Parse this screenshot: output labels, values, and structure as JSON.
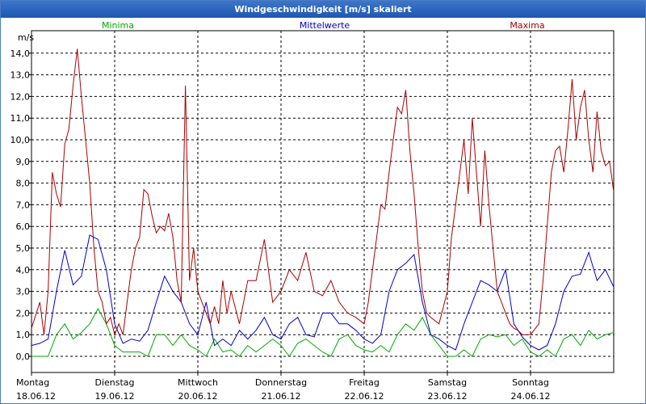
{
  "window": {
    "title": "Windgeschwindigkeit [m/s] skaliert"
  },
  "chart_data": {
    "type": "line",
    "title": "Windgeschwindigkeit [m/s] skaliert",
    "ylabel": "m/s",
    "xlabel": "",
    "ylim": [
      -0.5,
      15.0
    ],
    "xlim": [
      0,
      7
    ],
    "grid": true,
    "legend": [
      "Minima",
      "Mittelwerte",
      "Maxima"
    ],
    "y_ticks": [
      {
        "value": 0,
        "label": "0,0"
      },
      {
        "value": 1,
        "label": "1,0"
      },
      {
        "value": 2,
        "label": "2,0"
      },
      {
        "value": 3,
        "label": "3,0"
      },
      {
        "value": 4,
        "label": "4,0"
      },
      {
        "value": 5,
        "label": "5,0"
      },
      {
        "value": 6,
        "label": "6,0"
      },
      {
        "value": 7,
        "label": "7,0"
      },
      {
        "value": 8,
        "label": "8,0"
      },
      {
        "value": 9,
        "label": "9,0"
      },
      {
        "value": 10,
        "label": "10,0"
      },
      {
        "value": 11,
        "label": "11,0"
      },
      {
        "value": 12,
        "label": "12,0"
      },
      {
        "value": 13,
        "label": "13,0"
      },
      {
        "value": 14,
        "label": "14,0"
      }
    ],
    "x_ticks": [
      {
        "day": "Montag",
        "date": "18.06.12"
      },
      {
        "day": "Dienstag",
        "date": "19.06.12"
      },
      {
        "day": "Mittwoch",
        "date": "20.06.12"
      },
      {
        "day": "Donnerstag",
        "date": "21.06.12"
      },
      {
        "day": "Freitag",
        "date": "22.06.12"
      },
      {
        "day": "Samstag",
        "date": "23.06.12"
      },
      {
        "day": "Sonntag",
        "date": "24.06.12"
      }
    ],
    "series": [
      {
        "name": "Minima",
        "color": "#00aa00",
        "x": [
          0.0,
          0.2,
          0.3,
          0.4,
          0.5,
          0.6,
          0.7,
          0.8,
          0.9,
          1.0,
          1.1,
          1.2,
          1.3,
          1.4,
          1.5,
          1.6,
          1.7,
          1.8,
          1.9,
          2.0,
          2.1,
          2.2,
          2.3,
          2.4,
          2.5,
          2.6,
          2.7,
          2.8,
          2.9,
          3.0,
          3.1,
          3.2,
          3.3,
          3.4,
          3.5,
          3.6,
          3.7,
          3.8,
          3.9,
          4.0,
          4.1,
          4.2,
          4.3,
          4.4,
          4.5,
          4.6,
          4.7,
          4.8,
          4.9,
          5.0,
          5.1,
          5.2,
          5.3,
          5.4,
          5.5,
          5.6,
          5.7,
          5.8,
          5.9,
          6.0,
          6.1,
          6.2,
          6.3,
          6.4,
          6.5,
          6.6,
          6.7,
          6.8,
          6.9,
          7.0
        ],
        "y": [
          0.0,
          0.0,
          1.0,
          1.5,
          0.8,
          1.1,
          1.5,
          2.2,
          1.5,
          0.5,
          0.2,
          0.2,
          0.2,
          0.0,
          1.0,
          1.0,
          0.5,
          1.0,
          0.5,
          0.3,
          0.0,
          0.8,
          0.2,
          0.3,
          0.0,
          0.5,
          0.2,
          0.5,
          0.8,
          0.5,
          0.0,
          0.6,
          0.8,
          0.5,
          0.2,
          0.0,
          0.8,
          1.0,
          0.5,
          0.3,
          0.2,
          0.5,
          0.2,
          1.0,
          1.5,
          1.2,
          1.8,
          1.0,
          0.5,
          0.0,
          0.0,
          0.3,
          0.0,
          0.8,
          1.0,
          0.9,
          1.0,
          0.5,
          0.8,
          0.2,
          0.0,
          0.3,
          0.0,
          0.8,
          1.0,
          0.5,
          1.2,
          0.8,
          1.0,
          1.1
        ]
      },
      {
        "name": "Mittelwerte",
        "color": "#0000cc",
        "x": [
          0.0,
          0.1,
          0.2,
          0.3,
          0.4,
          0.5,
          0.6,
          0.7,
          0.8,
          0.9,
          1.0,
          1.1,
          1.2,
          1.3,
          1.4,
          1.5,
          1.6,
          1.7,
          1.8,
          1.9,
          2.0,
          2.1,
          2.2,
          2.3,
          2.4,
          2.5,
          2.6,
          2.7,
          2.8,
          2.9,
          3.0,
          3.1,
          3.2,
          3.3,
          3.4,
          3.5,
          3.6,
          3.7,
          3.8,
          3.9,
          4.0,
          4.1,
          4.2,
          4.3,
          4.4,
          4.5,
          4.6,
          4.7,
          4.8,
          4.9,
          5.0,
          5.1,
          5.2,
          5.3,
          5.4,
          5.5,
          5.6,
          5.7,
          5.8,
          5.9,
          6.0,
          6.1,
          6.2,
          6.3,
          6.4,
          6.5,
          6.6,
          6.7,
          6.8,
          6.9,
          7.0
        ],
        "y": [
          0.5,
          0.6,
          0.8,
          3.0,
          4.9,
          3.3,
          3.7,
          5.6,
          5.4,
          4.0,
          1.5,
          0.6,
          0.8,
          0.7,
          1.2,
          2.5,
          3.7,
          3.0,
          2.5,
          1.5,
          1.0,
          2.5,
          0.5,
          0.8,
          0.5,
          1.2,
          0.8,
          1.2,
          1.8,
          1.0,
          0.8,
          1.5,
          1.8,
          1.0,
          0.9,
          2.0,
          2.0,
          1.5,
          1.5,
          1.2,
          0.8,
          0.6,
          1.0,
          3.0,
          4.0,
          4.3,
          4.7,
          2.5,
          1.0,
          0.8,
          0.5,
          0.3,
          1.5,
          2.5,
          3.5,
          3.3,
          3.0,
          4.0,
          1.5,
          0.9,
          0.5,
          0.3,
          0.5,
          1.5,
          3.0,
          3.7,
          3.8,
          4.8,
          3.5,
          4.0,
          3.2
        ]
      },
      {
        "name": "Maxima",
        "color": "#aa0000",
        "x": [
          0.0,
          0.1,
          0.15,
          0.2,
          0.25,
          0.3,
          0.35,
          0.4,
          0.45,
          0.5,
          0.55,
          0.6,
          0.65,
          0.7,
          0.75,
          0.8,
          0.85,
          0.9,
          0.95,
          1.0,
          1.05,
          1.1,
          1.15,
          1.2,
          1.25,
          1.3,
          1.35,
          1.4,
          1.45,
          1.5,
          1.55,
          1.6,
          1.65,
          1.7,
          1.75,
          1.8,
          1.85,
          1.9,
          1.95,
          2.0,
          2.05,
          2.1,
          2.15,
          2.2,
          2.25,
          2.3,
          2.35,
          2.4,
          2.5,
          2.6,
          2.7,
          2.8,
          2.9,
          3.0,
          3.1,
          3.2,
          3.3,
          3.4,
          3.5,
          3.6,
          3.7,
          3.8,
          3.9,
          4.0,
          4.05,
          4.1,
          4.15,
          4.2,
          4.25,
          4.3,
          4.35,
          4.4,
          4.45,
          4.5,
          4.55,
          4.6,
          4.65,
          4.7,
          4.75,
          4.8,
          4.9,
          5.0,
          5.05,
          5.1,
          5.15,
          5.2,
          5.25,
          5.3,
          5.35,
          5.4,
          5.45,
          5.5,
          5.55,
          5.6,
          5.65,
          5.7,
          5.75,
          5.8,
          5.85,
          5.9,
          6.0,
          6.1,
          6.15,
          6.2,
          6.25,
          6.3,
          6.35,
          6.4,
          6.45,
          6.5,
          6.55,
          6.6,
          6.65,
          6.7,
          6.75,
          6.8,
          6.85,
          6.9,
          6.95,
          7.0
        ],
        "y": [
          1.3,
          2.5,
          1.0,
          3.0,
          8.5,
          7.5,
          6.9,
          9.8,
          10.5,
          12.5,
          14.2,
          12.0,
          10.0,
          8.0,
          5.0,
          3.0,
          2.5,
          1.5,
          1.8,
          1.0,
          1.5,
          1.0,
          2.5,
          4.0,
          5.0,
          5.5,
          7.7,
          7.5,
          6.5,
          5.7,
          6.0,
          5.8,
          6.6,
          5.5,
          3.5,
          2.5,
          12.5,
          3.5,
          5.0,
          3.0,
          2.5,
          2.0,
          1.5,
          2.3,
          1.5,
          3.5,
          2.0,
          3.0,
          1.5,
          3.5,
          3.5,
          5.4,
          2.5,
          3.0,
          4.0,
          3.5,
          4.8,
          3.0,
          2.8,
          3.5,
          2.5,
          2.0,
          1.8,
          1.5,
          2.5,
          4.0,
          5.5,
          7.0,
          6.8,
          8.5,
          10.0,
          11.5,
          11.2,
          12.3,
          9.5,
          7.5,
          5.0,
          3.0,
          2.0,
          1.8,
          1.5,
          3.0,
          5.5,
          7.0,
          8.5,
          10.0,
          7.5,
          11.0,
          8.5,
          6.0,
          9.5,
          7.0,
          5.0,
          3.0,
          2.5,
          2.0,
          1.5,
          1.3,
          1.2,
          1.0,
          1.0,
          1.5,
          3.5,
          6.0,
          8.5,
          9.5,
          9.7,
          8.5,
          10.5,
          12.8,
          10.0,
          11.5,
          12.3,
          10.0,
          8.5,
          11.3,
          9.5,
          8.8,
          9.0,
          7.6
        ]
      }
    ]
  }
}
